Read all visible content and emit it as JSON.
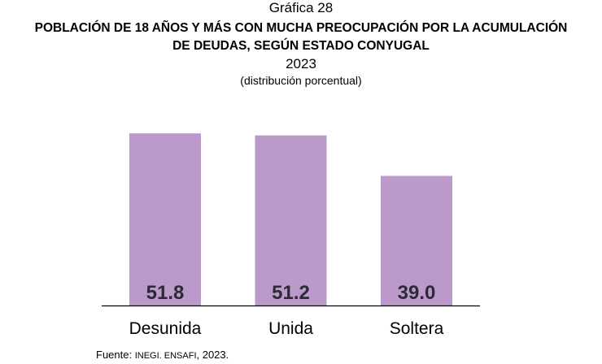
{
  "chart_data": {
    "type": "bar",
    "label": "Gráfica 28",
    "title_lines": [
      "POBLACIÓN DE 18 AÑOS Y MÁS CON MUCHA PREOCUPACIÓN POR LA ACUMULACIÓN",
      "DE DEUDAS, SEGÚN ESTADO CONYUGAL"
    ],
    "year": "2023",
    "subtitle": "(distribución porcentual)",
    "categories": [
      "Desunida",
      "Unida",
      "Soltera"
    ],
    "values": [
      51.8,
      51.2,
      39.0
    ],
    "value_labels": [
      "51.8",
      "51.2",
      "39.0"
    ],
    "xlabel": "",
    "ylabel": "",
    "ylim": [
      0,
      55
    ],
    "grid": false,
    "legend": "none",
    "bar_color": "#bb99cb",
    "source_prefix": "Fuente: ",
    "source_body": "INEGI. ENSAFI",
    "source_suffix": ", 2023."
  }
}
